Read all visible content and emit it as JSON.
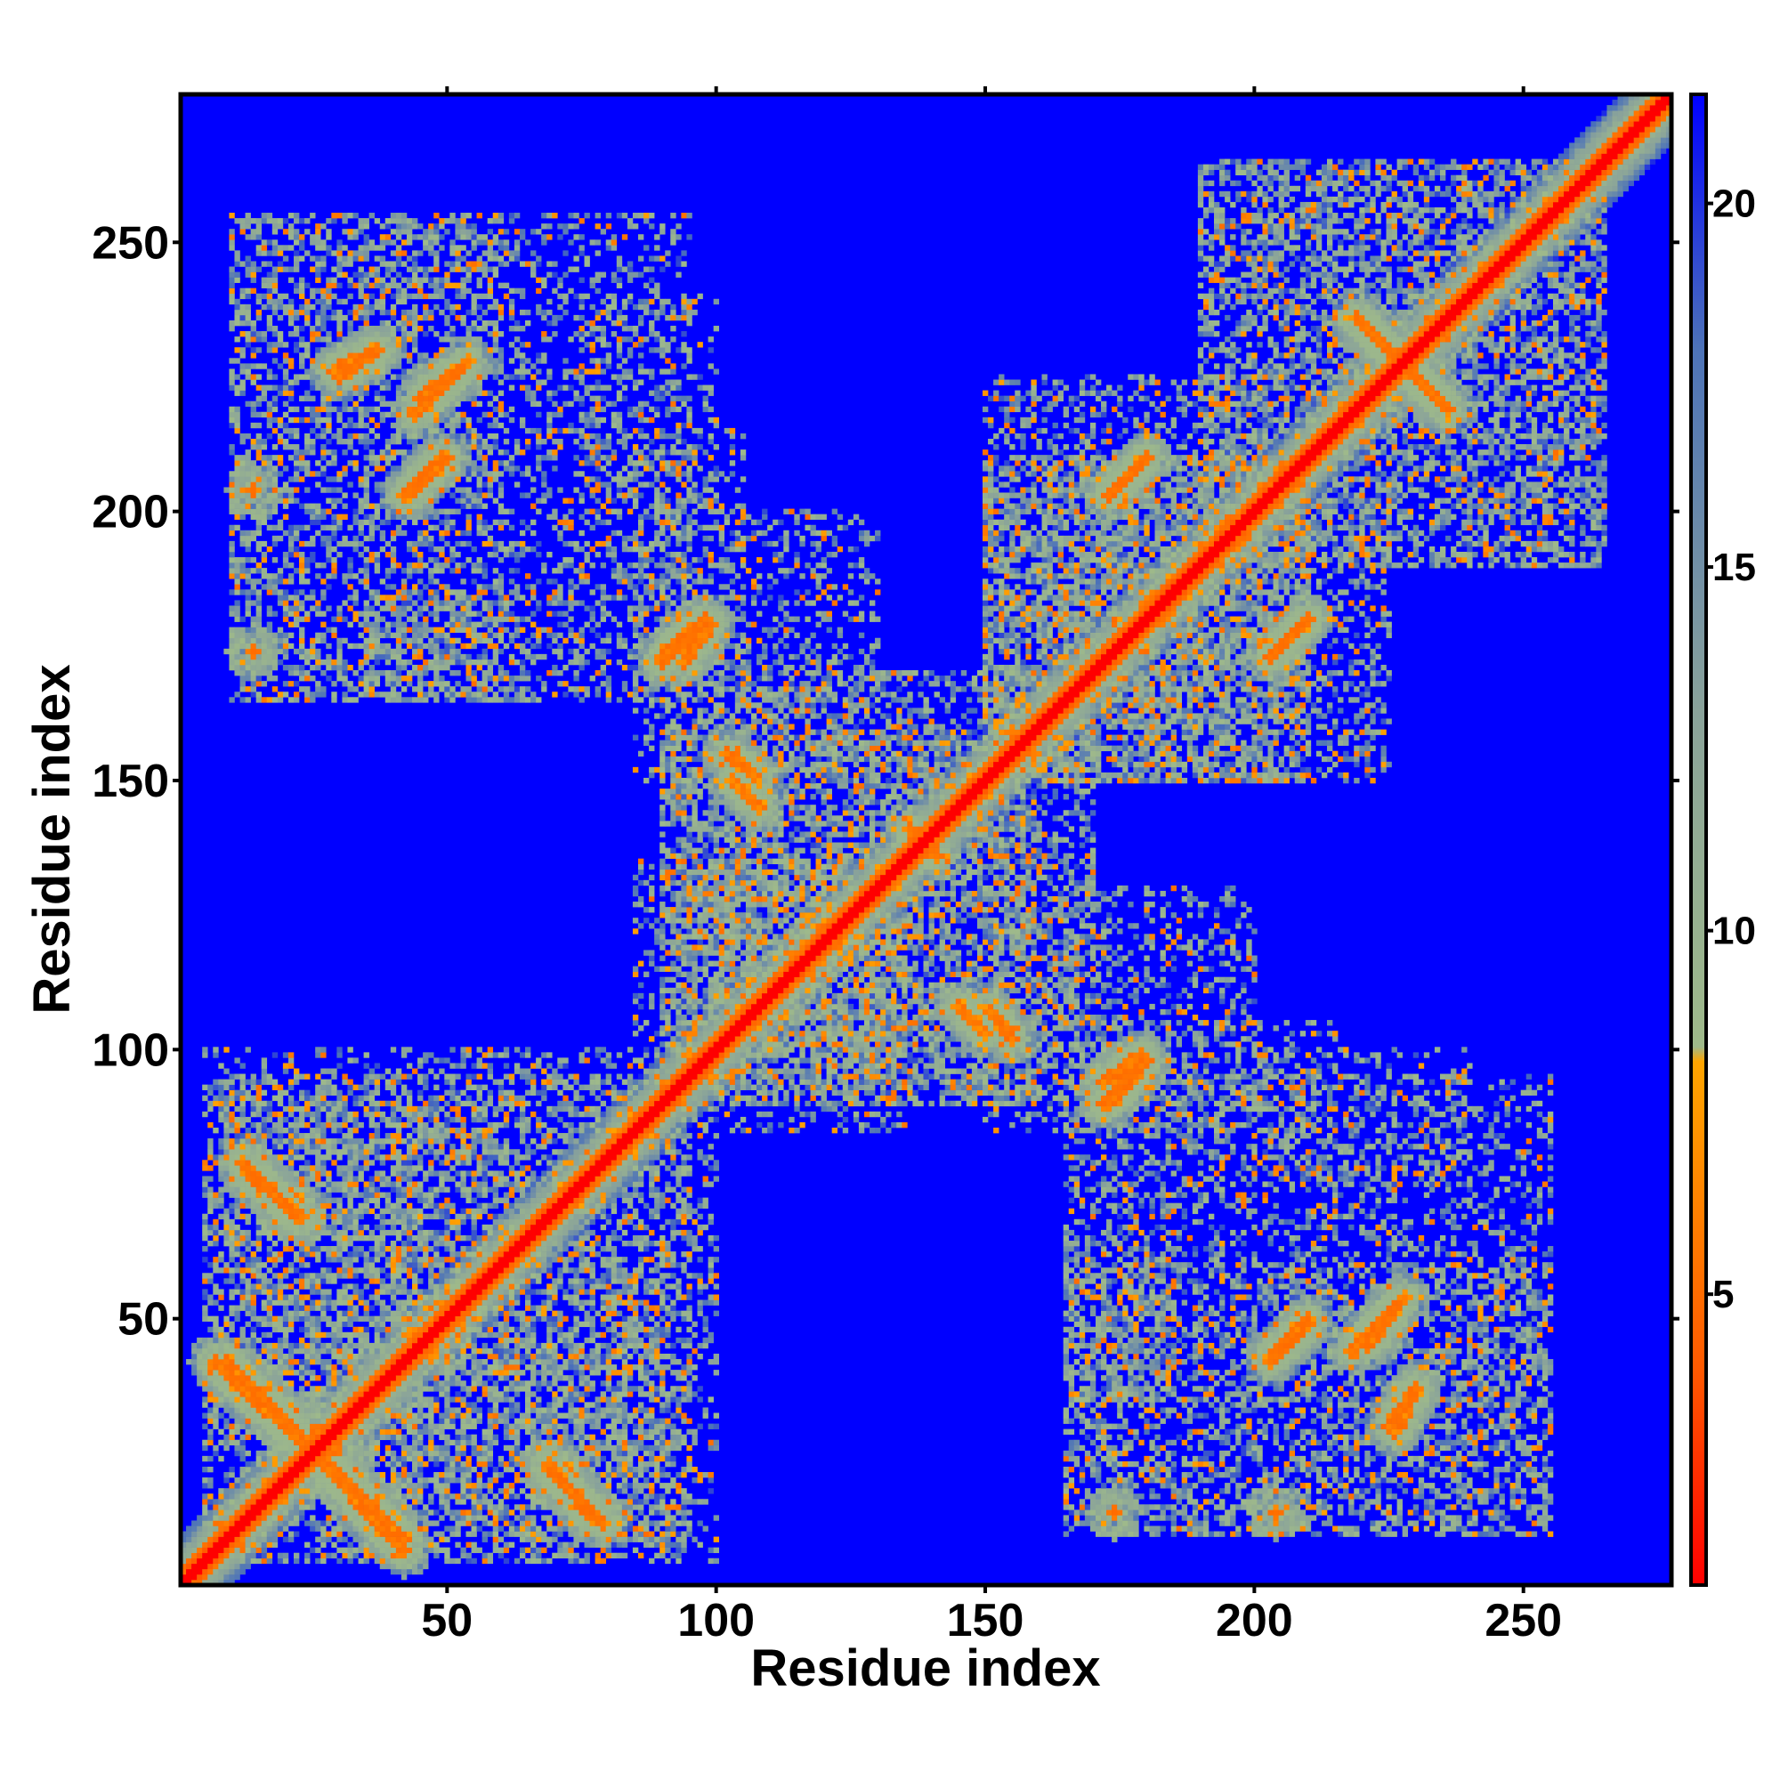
{
  "chart_data": {
    "type": "heatmap",
    "title": "",
    "xlabel": "Residue index",
    "ylabel": "Residue index",
    "n_residues": 277,
    "xlim": [
      0.5,
      277.5
    ],
    "ylim": [
      0.5,
      277.5
    ],
    "x_ticks": [
      {
        "value": 50,
        "label": "50"
      },
      {
        "value": 100,
        "label": "100"
      },
      {
        "value": 150,
        "label": "150"
      },
      {
        "value": 200,
        "label": "200"
      },
      {
        "value": 250,
        "label": "250"
      }
    ],
    "y_ticks": [
      {
        "value": 50,
        "label": "50"
      },
      {
        "value": 100,
        "label": "100"
      },
      {
        "value": 150,
        "label": "150"
      },
      {
        "value": 200,
        "label": "200"
      },
      {
        "value": 250,
        "label": "250"
      }
    ],
    "grid": false,
    "colorbar": {
      "placement": "right",
      "range": [
        1,
        21.5
      ],
      "ticks": [
        {
          "value": 5,
          "label": "5"
        },
        {
          "value": 10,
          "label": "10"
        },
        {
          "value": 15,
          "label": "15"
        },
        {
          "value": 20,
          "label": "20"
        }
      ],
      "stops": [
        {
          "value": 1,
          "color": "#ff0000"
        },
        {
          "value": 4,
          "color": "#ff5a00"
        },
        {
          "value": 8.2,
          "color": "#ffa500"
        },
        {
          "value": 8.4,
          "color": "#9fba8a"
        },
        {
          "value": 13,
          "color": "#8aa39a"
        },
        {
          "value": 18,
          "color": "#4d73b8"
        },
        {
          "value": 21.5,
          "color": "#0000ff"
        }
      ]
    },
    "background_value": 21.5,
    "background_color": "#0000ff",
    "diagonal": {
      "core_value": 1,
      "band_width": 6
    },
    "contact_features": [
      {
        "kind": "point",
        "x": 27,
        "y": 27,
        "r": 8
      },
      {
        "kind": "segment",
        "from": [
          7,
          42
        ],
        "to": [
          27,
          23
        ],
        "width": 2.5
      },
      {
        "kind": "segment",
        "from": [
          29,
          22
        ],
        "to": [
          42,
          9
        ],
        "width": 2.5
      },
      {
        "kind": "segment",
        "from": [
          13,
          77
        ],
        "to": [
          23,
          69
        ],
        "width": 2.5
      },
      {
        "kind": "segment",
        "from": [
          69,
          22
        ],
        "to": [
          79,
          12
        ],
        "width": 2.5
      },
      {
        "kind": "region",
        "x": [
          5,
          45
        ],
        "y": [
          5,
          95
        ],
        "density": 0.35
      },
      {
        "kind": "region",
        "x": [
          40,
          100
        ],
        "y": [
          5,
          95
        ],
        "density": 0.3
      },
      {
        "kind": "region",
        "x": [
          10,
          65
        ],
        "y": [
          40,
          90
        ],
        "density": 0.3
      },
      {
        "kind": "region",
        "x": [
          90,
          160
        ],
        "y": [
          90,
          170
        ],
        "density": 0.4
      },
      {
        "kind": "segment",
        "from": [
          90,
          173
        ],
        "to": [
          98,
          180
        ],
        "width": 2
      },
      {
        "kind": "segment",
        "from": [
          102,
          155
        ],
        "to": [
          108,
          150
        ],
        "width": 2
      },
      {
        "kind": "segment",
        "from": [
          139,
          137
        ],
        "to": [
          141,
          136
        ],
        "width": 2
      },
      {
        "kind": "segment",
        "from": [
          145,
          108
        ],
        "to": [
          150,
          103
        ],
        "width": 2
      },
      {
        "kind": "segment",
        "from": [
          172,
          94
        ],
        "to": [
          179,
          99
        ],
        "width": 2
      },
      {
        "kind": "region",
        "x": [
          150,
          200
        ],
        "y": [
          85,
          130
        ],
        "density": 0.3
      },
      {
        "kind": "region",
        "x": [
          100,
          135
        ],
        "y": [
          85,
          135
        ],
        "density": 0.3
      },
      {
        "kind": "region",
        "x": [
          150,
          210
        ],
        "y": [
          150,
          210
        ],
        "density": 0.35
      },
      {
        "kind": "region",
        "x": [
          190,
          265
        ],
        "y": [
          190,
          265
        ],
        "density": 0.35
      },
      {
        "kind": "segment",
        "from": [
          219,
          236
        ],
        "to": [
          234,
          221
        ],
        "width": 2.5
      },
      {
        "kind": "segment",
        "from": [
          173,
          203
        ],
        "to": [
          180,
          210
        ],
        "width": 2
      },
      {
        "kind": "segment",
        "from": [
          203,
          173
        ],
        "to": [
          210,
          180
        ],
        "width": 2
      },
      {
        "kind": "region",
        "x": [
          160,
          225
        ],
        "y": [
          150,
          195
        ],
        "density": 0.3
      },
      {
        "kind": "region",
        "x": [
          10,
          95
        ],
        "y": [
          165,
          255
        ],
        "density": 0.3
      },
      {
        "kind": "segment",
        "from": [
          29,
          226
        ],
        "to": [
          37,
          230
        ],
        "width": 2
      },
      {
        "kind": "segment",
        "from": [
          44,
          218
        ],
        "to": [
          52,
          226
        ],
        "width": 2
      },
      {
        "kind": "segment",
        "from": [
          43,
          203
        ],
        "to": [
          50,
          210
        ],
        "width": 2
      },
      {
        "kind": "point",
        "x": 14,
        "y": 174,
        "r": 3
      },
      {
        "kind": "point",
        "x": 14,
        "y": 204,
        "r": 3
      },
      {
        "kind": "segment",
        "from": [
          90,
          172
        ],
        "to": [
          97,
          179
        ],
        "width": 2
      },
      {
        "kind": "region",
        "x": [
          85,
          105
        ],
        "y": [
          170,
          215
        ],
        "density": 0.25
      },
      {
        "kind": "region",
        "x": [
          165,
          255
        ],
        "y": [
          10,
          60
        ],
        "density": 0.3
      },
      {
        "kind": "segment",
        "from": [
          203,
          42
        ],
        "to": [
          210,
          49
        ],
        "width": 2
      },
      {
        "kind": "segment",
        "from": [
          221,
          45
        ],
        "to": [
          228,
          54
        ],
        "width": 2
      },
      {
        "kind": "segment",
        "from": [
          225,
          30
        ],
        "to": [
          230,
          37
        ],
        "width": 2
      },
      {
        "kind": "point",
        "x": 174,
        "y": 14,
        "r": 3
      },
      {
        "kind": "point",
        "x": 204,
        "y": 14,
        "r": 3
      },
      {
        "kind": "region",
        "x": [
          165,
          185
        ],
        "y": [
          35,
          75
        ],
        "density": 0.25
      },
      {
        "kind": "region",
        "x": [
          200,
          240
        ],
        "y": [
          75,
          100
        ],
        "density": 0.2
      },
      {
        "kind": "region",
        "x": [
          110,
          135
        ],
        "y": [
          100,
          120
        ],
        "density": 0.25
      }
    ]
  }
}
